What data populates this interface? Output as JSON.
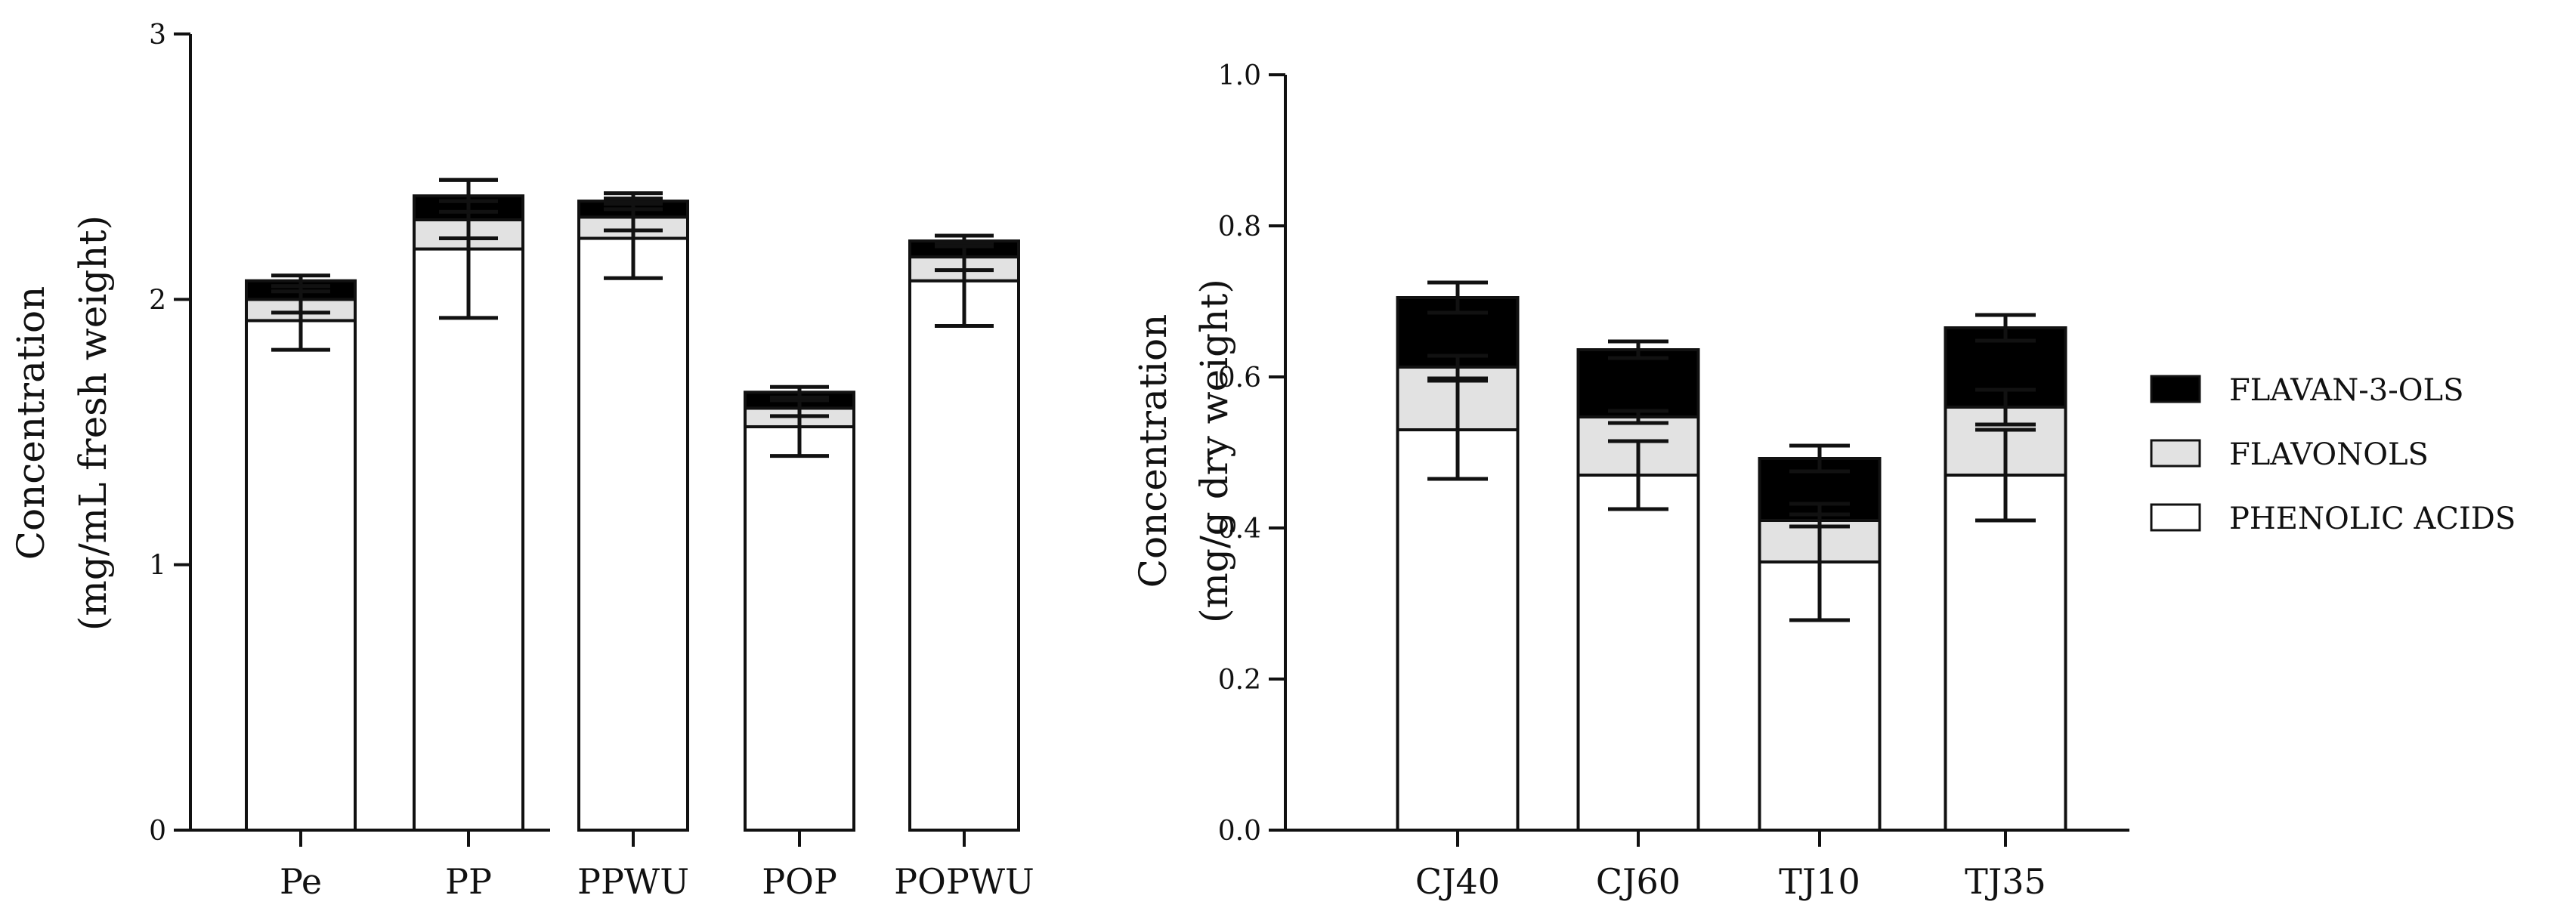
{
  "colors": {
    "flavan": "#000000",
    "flavonols": "#e2e2e2",
    "phenolic": "#ffffff",
    "outline": "#111111"
  },
  "legend": {
    "items": [
      {
        "label": "FLAVAN-3-OLS",
        "color": "#000000"
      },
      {
        "label": "FLAVONOLS",
        "color": "#e2e2e2"
      },
      {
        "label": "PHENOLIC ACIDS",
        "color": "#ffffff"
      }
    ]
  },
  "chart_data": [
    {
      "type": "bar",
      "stacked": true,
      "ylabel_line1": "Concentration",
      "ylabel_line2": "(mg/mL fresh weight)",
      "ylim": [
        0,
        3
      ],
      "yticks": [
        "0",
        "1",
        "2",
        "3"
      ],
      "yticks_values": [
        0,
        1,
        2,
        3
      ],
      "categories": [
        "Pe",
        "PP",
        "PPWU",
        "POP",
        "POPWU"
      ],
      "series": [
        {
          "name": "PHENOLIC ACIDS",
          "values": [
            1.92,
            2.19,
            2.23,
            1.52,
            2.07
          ],
          "error": [
            0.11,
            0.26,
            0.15,
            0.11,
            0.17
          ]
        },
        {
          "name": "FLAVONOLS",
          "values": [
            0.08,
            0.11,
            0.08,
            0.07,
            0.09
          ],
          "error": [
            0.05,
            0.07,
            0.05,
            0.03,
            0.05
          ]
        },
        {
          "name": "FLAVAN-3-OLS",
          "values": [
            0.07,
            0.09,
            0.06,
            0.06,
            0.06
          ],
          "error": [
            0.02,
            0.06,
            0.03,
            0.02,
            0.02
          ]
        }
      ]
    },
    {
      "type": "bar",
      "stacked": true,
      "ylabel_line1": "Concentration",
      "ylabel_line2": "(mg/g dry weight)",
      "ylim": [
        0,
        1.0
      ],
      "yticks": [
        "0.0",
        "0.2",
        "0.4",
        "0.6",
        "0.8",
        "1.0"
      ],
      "yticks_values": [
        0,
        0.2,
        0.4,
        0.6,
        0.8,
        1.0
      ],
      "categories": [
        "CJ40",
        "CJ60",
        "TJ10",
        "TJ35"
      ],
      "series": [
        {
          "name": "PHENOLIC ACIDS",
          "values": [
            0.53,
            0.47,
            0.355,
            0.47
          ],
          "error": [
            0.065,
            0.045,
            0.077,
            0.06
          ]
        },
        {
          "name": "FLAVONOLS",
          "values": [
            0.083,
            0.077,
            0.055,
            0.09
          ],
          "error": [
            0.015,
            0.008,
            0.008,
            0.023
          ]
        },
        {
          "name": "FLAVAN-3-OLS",
          "values": [
            0.092,
            0.089,
            0.082,
            0.105
          ],
          "error": [
            0.02,
            0.011,
            0.017,
            0.017
          ]
        }
      ]
    }
  ]
}
